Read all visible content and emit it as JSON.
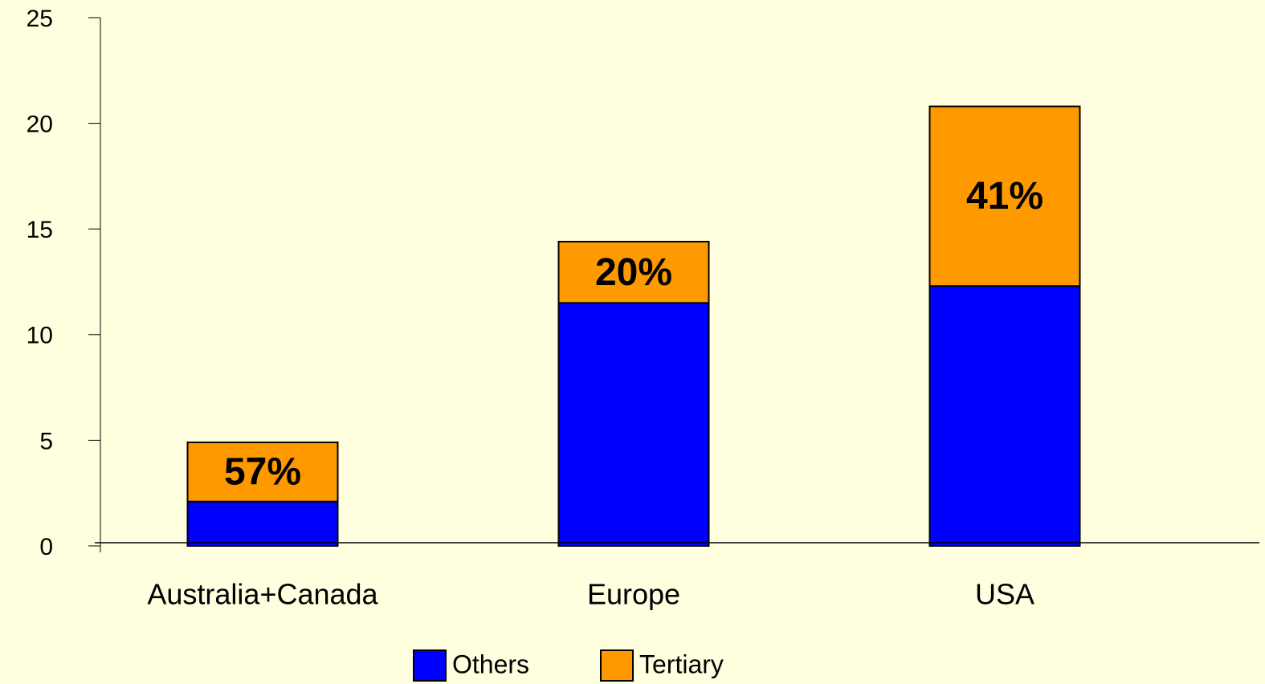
{
  "chart_data": {
    "type": "stacked_bar",
    "categories": [
      "Australia+Canada",
      "Europe",
      "USA"
    ],
    "series": [
      {
        "name": "Others",
        "color": "#0000ff",
        "values": [
          2.1,
          11.5,
          12.3
        ]
      },
      {
        "name": "Tertiary",
        "color": "#ff9900",
        "values": [
          2.8,
          2.9,
          8.5
        ]
      }
    ],
    "annotations": [
      "57%",
      "20%",
      "41%"
    ],
    "ylim": [
      0,
      25
    ],
    "yticks": [
      0,
      5,
      10,
      15,
      20,
      25
    ],
    "grid": false
  }
}
